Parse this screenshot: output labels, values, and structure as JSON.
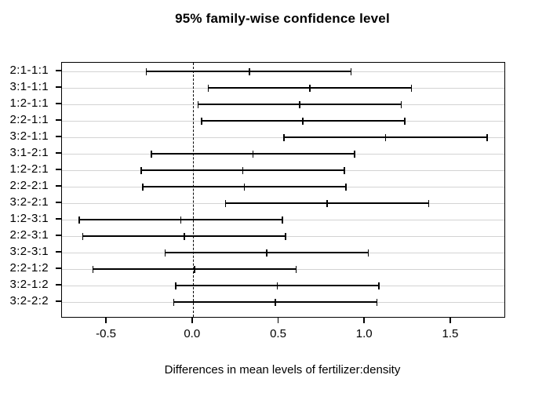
{
  "chart_data": {
    "type": "errorbar",
    "orientation": "horizontal",
    "title": "95% family-wise confidence level",
    "xlabel": "Differences in mean levels of fertilizer:density",
    "ylabel": "",
    "xlim": [
      -0.76,
      1.81
    ],
    "grid": "horizontal-lightgray",
    "reference_line": {
      "x": 0,
      "style": "dashed"
    },
    "x_ticks": [
      {
        "value": -0.5,
        "label": "-0.5"
      },
      {
        "value": 0.0,
        "label": "0.0"
      },
      {
        "value": 0.5,
        "label": "0.5"
      },
      {
        "value": 1.0,
        "label": "1.0"
      },
      {
        "value": 1.5,
        "label": "1.5"
      }
    ],
    "rows": [
      {
        "label": "2:1-1:1",
        "lwr": -0.27,
        "diff": 0.33,
        "upr": 0.92
      },
      {
        "label": "3:1-1:1",
        "lwr": 0.09,
        "diff": 0.68,
        "upr": 1.27
      },
      {
        "label": "1:2-1:1",
        "lwr": 0.03,
        "diff": 0.62,
        "upr": 1.21
      },
      {
        "label": "2:2-1:1",
        "lwr": 0.05,
        "diff": 0.64,
        "upr": 1.23
      },
      {
        "label": "3:2-1:1",
        "lwr": 0.53,
        "diff": 1.12,
        "upr": 1.71
      },
      {
        "label": "3:1-2:1",
        "lwr": -0.24,
        "diff": 0.35,
        "upr": 0.94
      },
      {
        "label": "1:2-2:1",
        "lwr": -0.3,
        "diff": 0.29,
        "upr": 0.88
      },
      {
        "label": "2:2-2:1",
        "lwr": -0.29,
        "diff": 0.3,
        "upr": 0.89
      },
      {
        "label": "3:2-2:1",
        "lwr": 0.19,
        "diff": 0.78,
        "upr": 1.37
      },
      {
        "label": "1:2-3:1",
        "lwr": -0.66,
        "diff": -0.07,
        "upr": 0.52
      },
      {
        "label": "2:2-3:1",
        "lwr": -0.64,
        "diff": -0.05,
        "upr": 0.54
      },
      {
        "label": "3:2-3:1",
        "lwr": -0.16,
        "diff": 0.43,
        "upr": 1.02
      },
      {
        "label": "2:2-1:2",
        "lwr": -0.58,
        "diff": 0.01,
        "upr": 0.6
      },
      {
        "label": "3:2-1:2",
        "lwr": -0.1,
        "diff": 0.49,
        "upr": 1.08
      },
      {
        "label": "3:2-2:2",
        "lwr": -0.11,
        "diff": 0.48,
        "upr": 1.07
      }
    ],
    "colors": {
      "interval": "#000000",
      "grid": "#d3d3d3",
      "text": "#000000",
      "background": "#ffffff"
    }
  }
}
